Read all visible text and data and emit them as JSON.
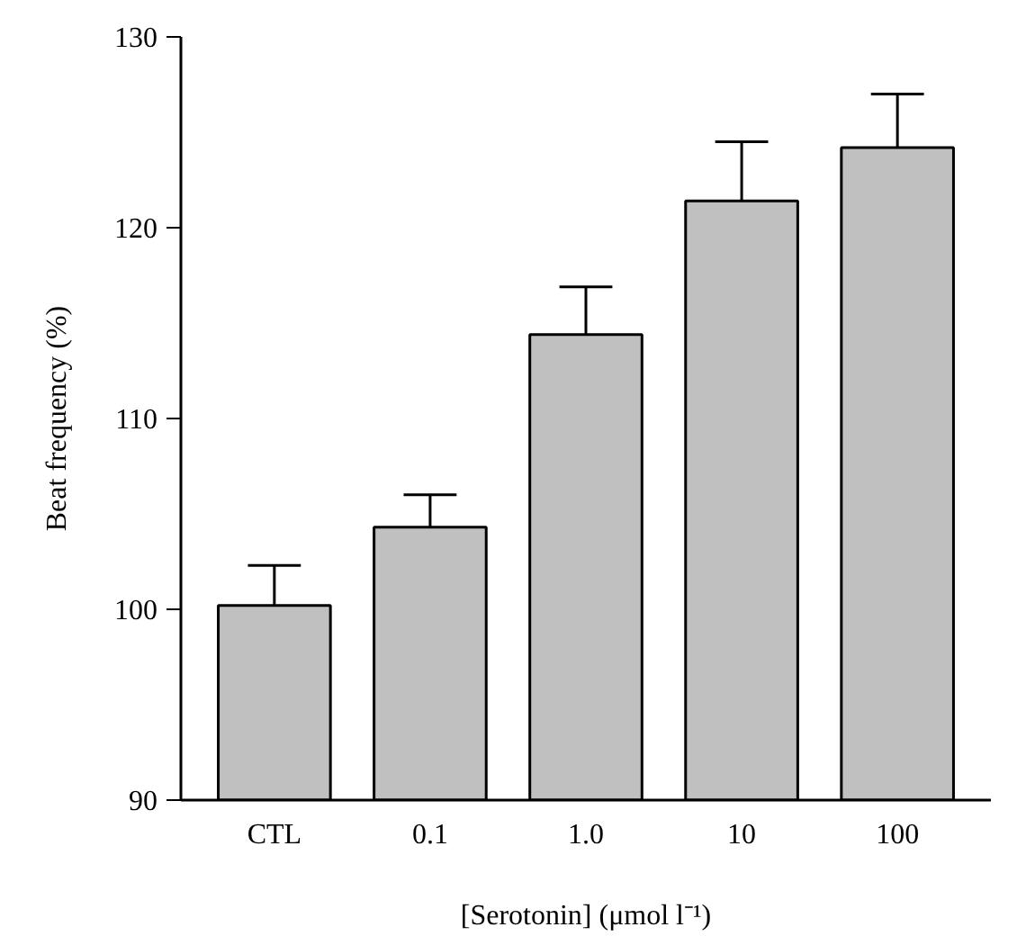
{
  "chart_data": {
    "type": "bar",
    "xlabel": "[Serotonin] (μmol l⁻¹)",
    "ylabel": "Beat frequency (%)",
    "categories": [
      "CTL",
      "0.1",
      "1.0",
      "10",
      "100"
    ],
    "values": [
      100.2,
      104.3,
      114.4,
      121.4,
      124.2
    ],
    "errors": [
      [
        100.2,
        102.3
      ],
      [
        104.3,
        106.0
      ],
      [
        114.4,
        116.9
      ],
      [
        121.4,
        124.5
      ],
      [
        124.2,
        127.0
      ]
    ],
    "color": "#c0c0c0",
    "ylim": [
      90,
      130
    ],
    "yticks": [
      90,
      100,
      110,
      120,
      130
    ],
    "grid": false
  }
}
